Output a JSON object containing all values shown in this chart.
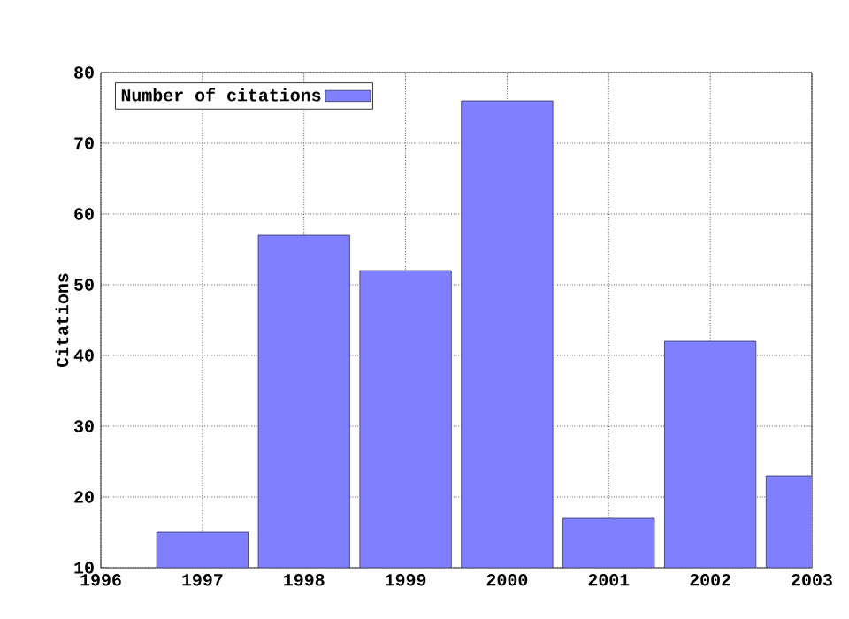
{
  "chart_data": {
    "type": "bar",
    "ylabel": "Citations",
    "x": [
      1997,
      1998,
      1999,
      2000,
      2001,
      2002,
      2003
    ],
    "series": [
      {
        "name": "Number of citations",
        "color": "#8080ff",
        "values": [
          15,
          57,
          52,
          76,
          17,
          42,
          23
        ]
      }
    ],
    "xlim": [
      1996,
      2003
    ],
    "xticks": [
      1996,
      1997,
      1998,
      1999,
      2000,
      2001,
      2002,
      2003
    ],
    "ylim": [
      10,
      80
    ],
    "yticks": [
      10,
      20,
      30,
      40,
      50,
      60,
      70,
      80
    ],
    "grid": true,
    "legend": "top left"
  }
}
